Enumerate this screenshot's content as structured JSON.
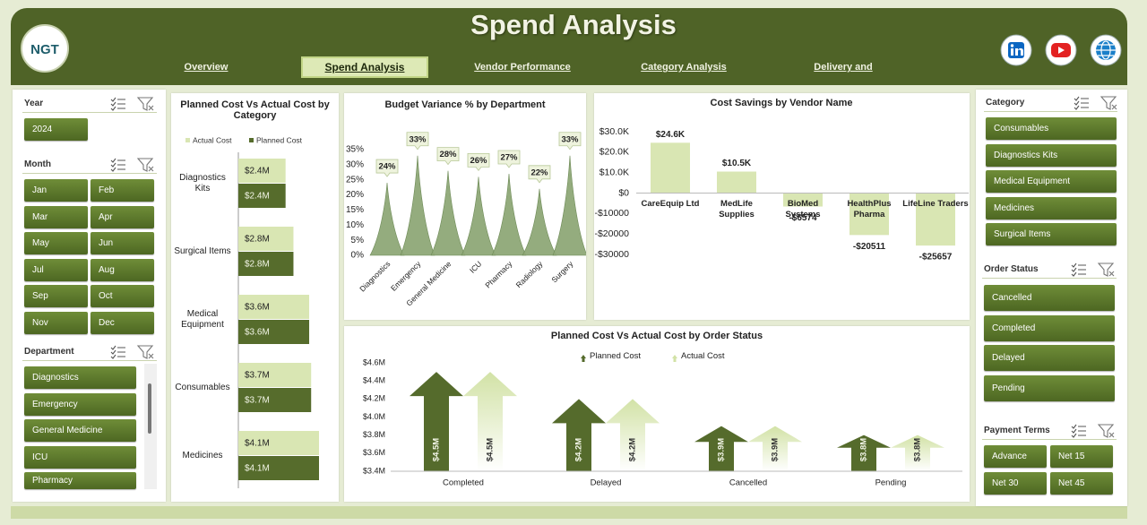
{
  "header": {
    "logo": "NGT",
    "title": "Spend Analysis"
  },
  "nav": [
    "Overview",
    "Spend Analysis",
    "Vendor Performance",
    "Category Analysis",
    "Delivery and"
  ],
  "slicers": {
    "year": {
      "title": "Year",
      "items": [
        "2024"
      ]
    },
    "month": {
      "title": "Month",
      "items": [
        "Jan",
        "Feb",
        "Mar",
        "Apr",
        "May",
        "Jun",
        "Jul",
        "Aug",
        "Sep",
        "Oct",
        "Nov",
        "Dec"
      ]
    },
    "department": {
      "title": "Department",
      "items": [
        "Diagnostics",
        "Emergency",
        "General Medicine",
        "ICU",
        "Pharmacy"
      ]
    },
    "category": {
      "title": "Category",
      "items": [
        "Consumables",
        "Diagnostics Kits",
        "Medical Equipment",
        "Medicines",
        "Surgical Items"
      ]
    },
    "order_status": {
      "title": "Order Status",
      "items": [
        "Cancelled",
        "Completed",
        "Delayed",
        "Pending"
      ]
    },
    "payment_terms": {
      "title": "Payment Terms",
      "items": [
        "Advance",
        "Net 15",
        "Net 30",
        "Net 45"
      ]
    }
  },
  "chart_data": [
    {
      "type": "hbar",
      "title": "Planned Cost Vs Actual Cost by Category",
      "categories": [
        "Diagnostics Kits",
        "Surgical Items",
        "Medical Equipment",
        "Consumables",
        "Medicines"
      ],
      "series": [
        {
          "name": "Actual Cost",
          "color": "#d9e6b3",
          "values": [
            2400000,
            2800000,
            3600000,
            3700000,
            4100000
          ],
          "value_labels": [
            "$2.4M",
            "$2.8M",
            "$3.6M",
            "$3.7M",
            "$4.1M"
          ]
        },
        {
          "name": "Planned Cost",
          "color": "#566c2c",
          "values": [
            2400000,
            2800000,
            3600000,
            3700000,
            4100000
          ],
          "value_labels": [
            "$2.4M",
            "$2.8M",
            "$3.6M",
            "$3.7M",
            "$4.1M"
          ]
        }
      ],
      "legend": "top"
    },
    {
      "type": "spike",
      "title": "Budget Variance % by Department",
      "categories": [
        "Diagnostics",
        "Emergency",
        "General Medicine",
        "ICU",
        "Pharmacy",
        "Radiology",
        "Surgery"
      ],
      "values": [
        24,
        33,
        28,
        26,
        27,
        22,
        33
      ],
      "value_labels": [
        "24%",
        "33%",
        "28%",
        "26%",
        "27%",
        "22%",
        "33%"
      ],
      "color": "#8ea877",
      "ylim": [
        0,
        35
      ],
      "yticks": [
        {
          "value": 0,
          "label": "0%"
        },
        {
          "value": 5,
          "label": "5%"
        },
        {
          "value": 10,
          "label": "10%"
        },
        {
          "value": 15,
          "label": "15%"
        },
        {
          "value": 20,
          "label": "20%"
        },
        {
          "value": 25,
          "label": "25%"
        },
        {
          "value": 30,
          "label": "30%"
        },
        {
          "value": 35,
          "label": "35%"
        }
      ]
    },
    {
      "type": "bar",
      "title": "Cost Savings by Vendor Name",
      "categories": [
        "CareEquip Ltd",
        "MedLife Supplies",
        "BioMed Systems",
        "HealthPlus Pharma",
        "LifeLine Traders"
      ],
      "values": [
        24600,
        10500,
        -6574,
        -20511,
        -25657
      ],
      "value_labels": [
        "$24.6K",
        "$10.5K",
        "-$6574",
        "-$20511",
        "-$25657"
      ],
      "color": "#d9e6b3",
      "ylim": [
        -30000,
        30000
      ],
      "yticks": [
        {
          "value": 30000,
          "label": "$30.0K"
        },
        {
          "value": 20000,
          "label": "$20.0K"
        },
        {
          "value": 10000,
          "label": "$10.0K"
        },
        {
          "value": 0,
          "label": "$0"
        },
        {
          "value": -10000,
          "label": "-$10000"
        },
        {
          "value": -20000,
          "label": "-$20000"
        },
        {
          "value": -30000,
          "label": "-$30000"
        }
      ]
    },
    {
      "type": "arrow",
      "title": "Planned Cost Vs Actual Cost by Order Status",
      "categories": [
        "Completed",
        "Delayed",
        "Cancelled",
        "Pending"
      ],
      "series": [
        {
          "name": "Planned Cost",
          "color": "#556b2c",
          "values": [
            4500000,
            4200000,
            3900000,
            3800000
          ],
          "value_labels": [
            "$4.5M",
            "$4.2M",
            "$3.9M",
            "$3.8M"
          ]
        },
        {
          "name": "Actual Cost",
          "color": "#d2e2a6",
          "values": [
            4500000,
            4200000,
            3900000,
            3800000
          ],
          "value_labels": [
            "$4.5M",
            "$4.2M",
            "$3.9M",
            "$3.8M"
          ]
        }
      ],
      "ylim": [
        3400000,
        4600000
      ],
      "yticks": [
        {
          "value": 3400000,
          "label": "$3.4M"
        },
        {
          "value": 3600000,
          "label": "$3.6M"
        },
        {
          "value": 3800000,
          "label": "$3.8M"
        },
        {
          "value": 4000000,
          "label": "$4.0M"
        },
        {
          "value": 4200000,
          "label": "$4.2M"
        },
        {
          "value": 4400000,
          "label": "$4.4M"
        },
        {
          "value": 4600000,
          "label": "$4.6M"
        }
      ],
      "legend": "top"
    }
  ]
}
